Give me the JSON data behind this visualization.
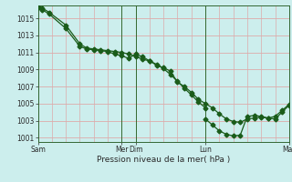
{
  "xlabel": "Pression niveau de la mer( hPa )",
  "background_color": "#cceeed",
  "grid_color": "#ddaaaa",
  "line_color": "#1a5c1a",
  "marker_color": "#1a5c1a",
  "ylim": [
    1000.5,
    1016.5
  ],
  "yticks": [
    1001,
    1003,
    1005,
    1007,
    1009,
    1011,
    1013,
    1015
  ],
  "xlim": [
    0,
    18
  ],
  "xtick_positions": [
    0,
    6,
    7,
    12,
    18
  ],
  "xtick_labels": [
    "Sam",
    "Mer",
    "Dim",
    "Lun",
    "Mar"
  ],
  "vline_positions": [
    0,
    6,
    7,
    12,
    18
  ],
  "series1_x": [
    0,
    0.3,
    0.8,
    2.0,
    3.0,
    3.5,
    4.0,
    4.5,
    5.0,
    5.5,
    6.0,
    6.5,
    7.0,
    7.5,
    8.0,
    8.5,
    9.0,
    9.5,
    10.0,
    10.5,
    11.0,
    11.5,
    12.0
  ],
  "series1_y": [
    1016.3,
    1016.2,
    1015.7,
    1014.2,
    1012.0,
    1011.5,
    1011.4,
    1011.3,
    1011.2,
    1011.1,
    1011.0,
    1010.8,
    1010.5,
    1010.2,
    1010.0,
    1009.6,
    1009.1,
    1008.4,
    1007.6,
    1006.8,
    1006.0,
    1005.2,
    1004.5
  ],
  "series2_x": [
    0,
    0.3,
    0.8,
    2.0,
    3.0,
    3.5,
    4.0,
    4.5,
    5.0,
    5.5,
    6.0,
    6.5,
    7.0,
    7.5,
    8.0,
    8.5,
    9.0,
    9.5,
    10.0,
    10.5,
    11.0,
    11.5,
    12.0,
    12.5,
    13.0,
    13.5,
    14.0,
    14.5,
    15.0,
    15.5,
    16.0,
    16.5,
    17.0,
    17.5,
    18.0
  ],
  "series2_y": [
    1016.3,
    1016.0,
    1015.5,
    1013.8,
    1011.7,
    1011.4,
    1011.3,
    1011.2,
    1011.1,
    1010.8,
    1010.6,
    1010.3,
    1010.8,
    1010.5,
    1010.0,
    1009.5,
    1009.2,
    1008.8,
    1007.5,
    1007.0,
    1006.3,
    1005.5,
    1005.0,
    1004.5,
    1003.8,
    1003.2,
    1002.9,
    1002.8,
    1003.2,
    1003.3,
    1003.4,
    1003.3,
    1003.5,
    1004.2,
    1004.9
  ],
  "series3_x": [
    12.0,
    12.5,
    13.0,
    13.5,
    14.0,
    14.5,
    15.0,
    15.5,
    16.0,
    16.5,
    17.0,
    17.5,
    18.0
  ],
  "series3_y": [
    1003.2,
    1002.5,
    1001.8,
    1001.4,
    1001.2,
    1001.3,
    1003.5,
    1003.6,
    1003.5,
    1003.3,
    1003.2,
    1004.0,
    1004.8
  ]
}
